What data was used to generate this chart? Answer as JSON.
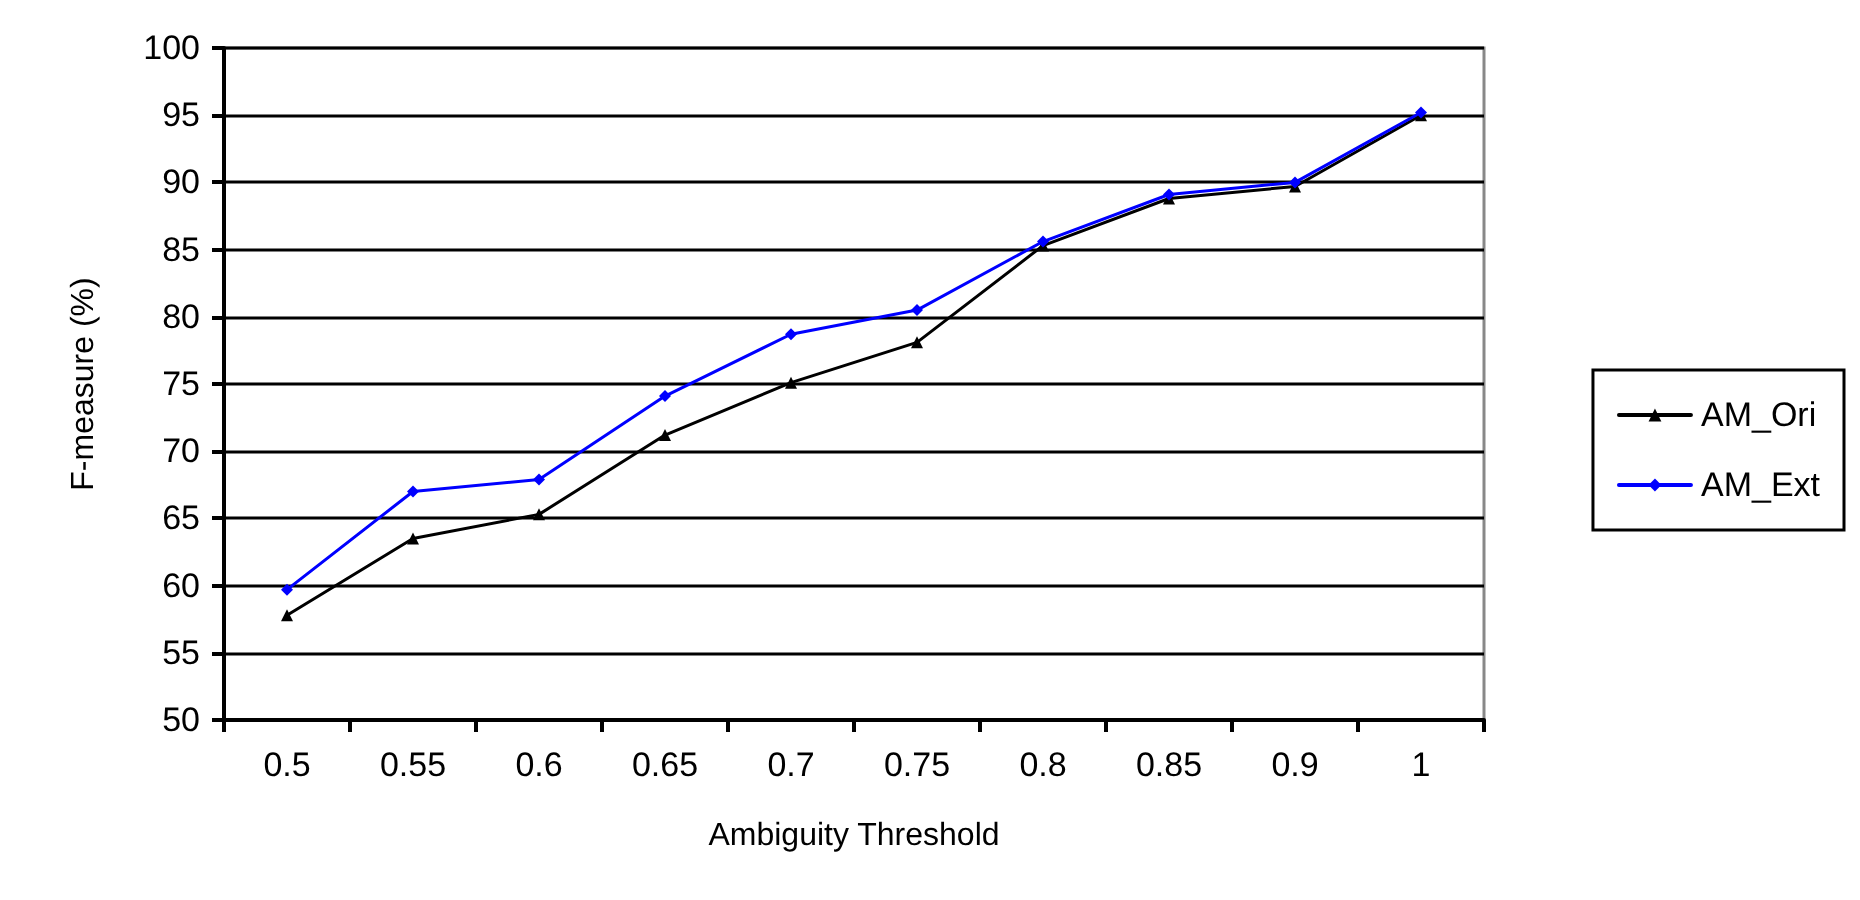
{
  "chart_data": {
    "type": "line",
    "xlabel": "Ambiguity Threshold",
    "ylabel": "F-measure (%)",
    "categories": [
      "0.5",
      "0.55",
      "0.6",
      "0.65",
      "0.7",
      "0.75",
      "0.8",
      "0.85",
      "0.9",
      "1"
    ],
    "series": [
      {
        "name": "AM_Ori",
        "color": "#000000",
        "marker": "triangle",
        "values": [
          57.8,
          63.5,
          65.3,
          71.2,
          75.1,
          78.1,
          85.3,
          88.8,
          89.7,
          95.0
        ]
      },
      {
        "name": "AM_Ext",
        "color": "#0000ff",
        "marker": "diamond",
        "values": [
          59.7,
          67.0,
          67.9,
          74.1,
          78.7,
          80.5,
          85.6,
          89.1,
          90.0,
          95.2
        ]
      }
    ],
    "ylim": [
      50,
      100
    ],
    "yticks": [
      50,
      55,
      60,
      65,
      70,
      75,
      80,
      85,
      90,
      95,
      100
    ],
    "grid": "y",
    "legend": "right",
    "line_style": "solid"
  }
}
